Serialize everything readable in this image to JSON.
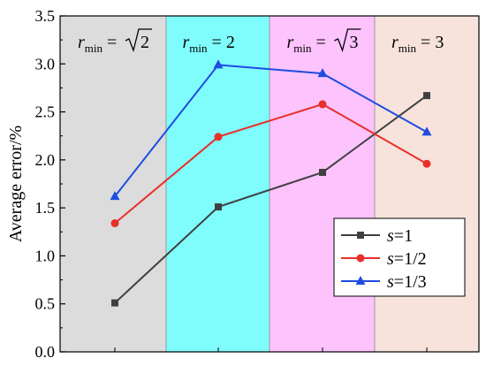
{
  "chart_data": {
    "type": "line",
    "title": "",
    "xlabel": "",
    "ylabel": "Average error/%",
    "ylim": [
      0.0,
      3.5
    ],
    "yticks": [
      "0.0",
      "0.5",
      "1.0",
      "1.5",
      "2.0",
      "2.5",
      "3.0",
      "3.5"
    ],
    "x": [
      1,
      2,
      3,
      4
    ],
    "regions": [
      {
        "var": "r",
        "sub": "min",
        "rel": "=",
        "value": "√2",
        "radical": true,
        "radicand": "2",
        "color": "#dcdcdc"
      },
      {
        "var": "r",
        "sub": "min",
        "rel": "=",
        "value": "2",
        "radical": false,
        "color": "#7ffcfc"
      },
      {
        "var": "r",
        "sub": "min",
        "rel": "=",
        "value": "√3",
        "radical": true,
        "radicand": "3",
        "color": "#fdc3fd"
      },
      {
        "var": "r",
        "sub": "min",
        "rel": "=",
        "value": "3",
        "radical": false,
        "color": "#f7e3db"
      }
    ],
    "series": [
      {
        "name": "s=1",
        "var": "s",
        "eq": "=1",
        "values": [
          0.51,
          1.51,
          1.87,
          2.67
        ],
        "color": "#404040",
        "marker": "square"
      },
      {
        "name": "s=1/2",
        "var": "s",
        "eq": "=1/2",
        "values": [
          1.34,
          2.24,
          2.58,
          1.96
        ],
        "color": "#e8302a",
        "marker": "circle"
      },
      {
        "name": "s=1/3",
        "var": "s",
        "eq": "=1/3",
        "values": [
          1.62,
          2.99,
          2.9,
          2.29
        ],
        "color": "#1f4de0",
        "marker": "triangle"
      }
    ],
    "legend": {
      "position": "bottom-right"
    },
    "grid": false
  }
}
